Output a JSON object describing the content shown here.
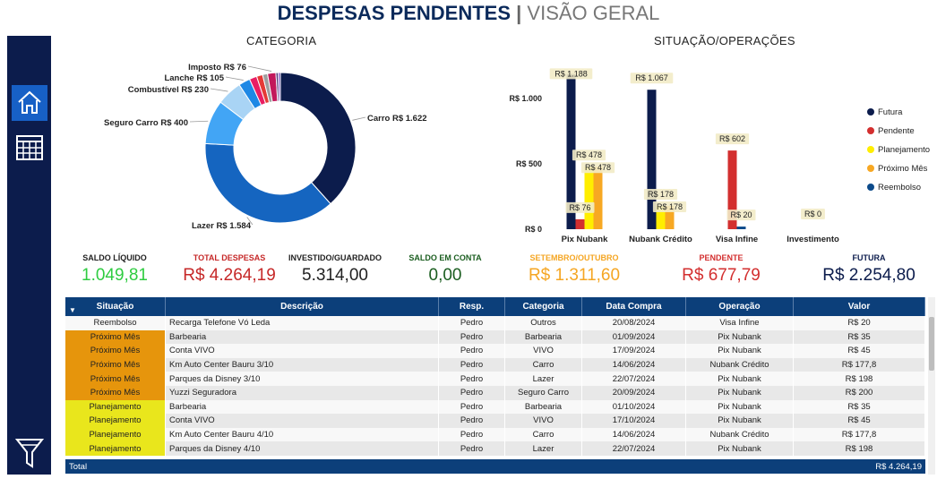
{
  "header": {
    "title_main": "DESPESAS PENDENTES",
    "separator": "|",
    "title_sub": "VISÃO GERAL"
  },
  "sidebar": {
    "items": [
      {
        "icon": "home-icon"
      },
      {
        "icon": "table-icon"
      },
      {
        "icon": "filter-icon"
      }
    ]
  },
  "sections": {
    "categoria": "CATEGORIA",
    "situacao": "SITUAÇÃO/OPERAÇÕES"
  },
  "donut": {
    "type": "pie",
    "slices": [
      {
        "label": "Carro R$ 1.622",
        "value": 1622,
        "color": "#0c1c4c",
        "labeled": true
      },
      {
        "label": "Lazer R$ 1.584",
        "value": 1584,
        "color": "#1565c0",
        "labeled": true
      },
      {
        "label": "Seguro Carro R$ 400",
        "value": 400,
        "color": "#42a5f5",
        "labeled": true
      },
      {
        "label": "Combustível R$ 230",
        "value": 230,
        "color": "#a9d4f5",
        "labeled": true
      },
      {
        "label": "Lanche R$ 105",
        "value": 105,
        "color": "#1e88e5",
        "labeled": true
      },
      {
        "label": "",
        "value": 68,
        "color": "#e91e63",
        "labeled": false
      },
      {
        "label": "",
        "value": 55,
        "color": "#e53935",
        "labeled": false
      },
      {
        "label": "",
        "value": 45,
        "color": "#9e9e9e",
        "labeled": false
      },
      {
        "label": "Imposto R$ 76",
        "value": 76,
        "color": "#c2185b",
        "labeled": true
      },
      {
        "label": "",
        "value": 20,
        "color": "#3f2a6e",
        "labeled": false
      },
      {
        "label": "",
        "value": 20,
        "color": "#7e57c2",
        "labeled": false
      }
    ]
  },
  "chart_data": {
    "type": "bar",
    "categories": [
      "Pix Nubank",
      "Nubank Crédito",
      "Visa Infine",
      "Investimento"
    ],
    "yticks": [
      "R$ 1.000",
      "R$ 500",
      "R$ 0"
    ],
    "ylim": [
      0,
      1200
    ],
    "series": [
      {
        "name": "Futura",
        "color": "#0c1c4c",
        "values": [
          1188,
          1067,
          null,
          null
        ]
      },
      {
        "name": "Pendente",
        "color": "#d32f2f",
        "values": [
          76,
          null,
          602,
          null
        ]
      },
      {
        "name": "Planejamento",
        "color": "#ffee00",
        "values": [
          478,
          178,
          null,
          null
        ]
      },
      {
        "name": "Próximo Mês",
        "color": "#f7a823",
        "values": [
          478,
          178,
          null,
          null
        ]
      },
      {
        "name": "Reembolso",
        "color": "#0c4a8a",
        "values": [
          null,
          null,
          20,
          0
        ]
      }
    ],
    "data_labels": [
      {
        "text": "R$ 1.188",
        "category": 0,
        "series": 0,
        "value": 1188
      },
      {
        "text": "R$ 76",
        "category": 0,
        "series": 1,
        "value": 76
      },
      {
        "text": "R$ 478",
        "category": 0,
        "series": 2,
        "value": 478
      },
      {
        "text": "R$ 478",
        "category": 0,
        "series": 3,
        "value": 478
      },
      {
        "text": "R$ 1.067",
        "category": 1,
        "series": 0,
        "value": 1067
      },
      {
        "text": "R$ 178",
        "category": 1,
        "series": 2,
        "value": 178
      },
      {
        "text": "R$ 178",
        "category": 1,
        "series": 3,
        "value": 178
      },
      {
        "text": "R$ 602",
        "category": 2,
        "series": 1,
        "value": 602
      },
      {
        "text": "R$ 20",
        "category": 2,
        "series": 4,
        "value": 20
      },
      {
        "text": "R$ 0",
        "category": 3,
        "series": 4,
        "value": 0
      }
    ],
    "legend_position": "right"
  },
  "kpis": [
    {
      "label": "SALDO LÍQUIDO",
      "value": "1.049,81",
      "label_color": "#222222",
      "value_color": "#2ecc40"
    },
    {
      "label": "TOTAL DESPESAS",
      "value": "R$ 4.264,19",
      "label_color": "#c62828",
      "value_color": "#c62828"
    },
    {
      "label": "INVESTIDO/GUARDADO",
      "value": "5.314,00",
      "label_color": "#222222",
      "value_color": "#222222"
    },
    {
      "label": "SALDO EM CONTA",
      "value": "0,00",
      "label_color": "#1b5e20",
      "value_color": "#1b5e20"
    },
    {
      "label": "SETEMBRO/OUTUBRO",
      "value": "R$ 1.311,60",
      "label_color": "#f5a623",
      "value_color": "#f5a623"
    },
    {
      "label": "PENDENTE",
      "value": "R$ 677,79",
      "label_color": "#d32f2f",
      "value_color": "#d32f2f"
    },
    {
      "label": "FUTURA",
      "value": "R$ 2.254,80",
      "label_color": "#0c1c4c",
      "value_color": "#0c1c4c"
    }
  ],
  "table": {
    "headers": [
      "Situação",
      "Descrição",
      "Resp.",
      "Categoria",
      "Data Compra",
      "Operação",
      "Valor"
    ],
    "rows": [
      {
        "situacao": "Reembolso",
        "sit_color": "#f8f8f8",
        "descricao": "Recarga Telefone Vó Leda",
        "resp": "Pedro",
        "categoria": "Outros",
        "data": "20/08/2024",
        "operacao": "Visa Infine",
        "valor": "R$ 20"
      },
      {
        "situacao": "Próximo Mês",
        "sit_color": "#e6950c",
        "descricao": "Barbearia",
        "resp": "Pedro",
        "categoria": "Barbearia",
        "data": "01/09/2024",
        "operacao": "Pix Nubank",
        "valor": "R$ 35"
      },
      {
        "situacao": "Próximo Mês",
        "sit_color": "#e6950c",
        "descricao": "Conta VIVO",
        "resp": "Pedro",
        "categoria": "VIVO",
        "data": "17/09/2024",
        "operacao": "Pix Nubank",
        "valor": "R$ 45"
      },
      {
        "situacao": "Próximo Mês",
        "sit_color": "#e6950c",
        "descricao": "Km Auto Center Bauru 3/10",
        "resp": "Pedro",
        "categoria": "Carro",
        "data": "14/06/2024",
        "operacao": "Nubank Crédito",
        "valor": "R$ 177,8"
      },
      {
        "situacao": "Próximo Mês",
        "sit_color": "#e6950c",
        "descricao": "Parques da Disney 3/10",
        "resp": "Pedro",
        "categoria": "Lazer",
        "data": "22/07/2024",
        "operacao": "Pix Nubank",
        "valor": "R$ 198"
      },
      {
        "situacao": "Próximo Mês",
        "sit_color": "#e6950c",
        "descricao": "Yuzzi Seguradora",
        "resp": "Pedro",
        "categoria": "Seguro Carro",
        "data": "20/09/2024",
        "operacao": "Pix Nubank",
        "valor": "R$ 200"
      },
      {
        "situacao": "Planejamento",
        "sit_color": "#e9e61c",
        "descricao": "Barbearia",
        "resp": "Pedro",
        "categoria": "Barbearia",
        "data": "01/10/2024",
        "operacao": "Pix Nubank",
        "valor": "R$ 35"
      },
      {
        "situacao": "Planejamento",
        "sit_color": "#e9e61c",
        "descricao": "Conta VIVO",
        "resp": "Pedro",
        "categoria": "VIVO",
        "data": "17/10/2024",
        "operacao": "Pix Nubank",
        "valor": "R$ 45"
      },
      {
        "situacao": "Planejamento",
        "sit_color": "#e9e61c",
        "descricao": "Km Auto Center Bauru 4/10",
        "resp": "Pedro",
        "categoria": "Carro",
        "data": "14/06/2024",
        "operacao": "Nubank Crédito",
        "valor": "R$ 177,8"
      },
      {
        "situacao": "Planejamento",
        "sit_color": "#e9e61c",
        "descricao": "Parques da Disney 4/10",
        "resp": "Pedro",
        "categoria": "Lazer",
        "data": "22/07/2024",
        "operacao": "Pix Nubank",
        "valor": "R$ 198"
      }
    ],
    "total_label": "Total",
    "total_value": "R$ 4.264,19"
  }
}
